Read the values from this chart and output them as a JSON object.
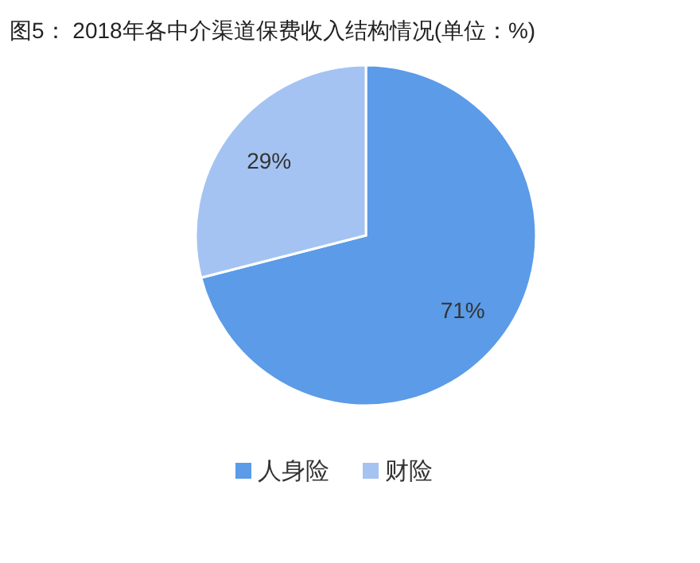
{
  "chart_data": {
    "type": "pie",
    "title": "图5： 2018年各中介渠道保费收入结构情况(单位：%)",
    "categories": [
      "人身险",
      "财险"
    ],
    "values": [
      71,
      29
    ],
    "colors": [
      "#5b9be8",
      "#a4c3f2"
    ],
    "value_labels": [
      "71%",
      "29%"
    ],
    "legend": "bottom"
  }
}
